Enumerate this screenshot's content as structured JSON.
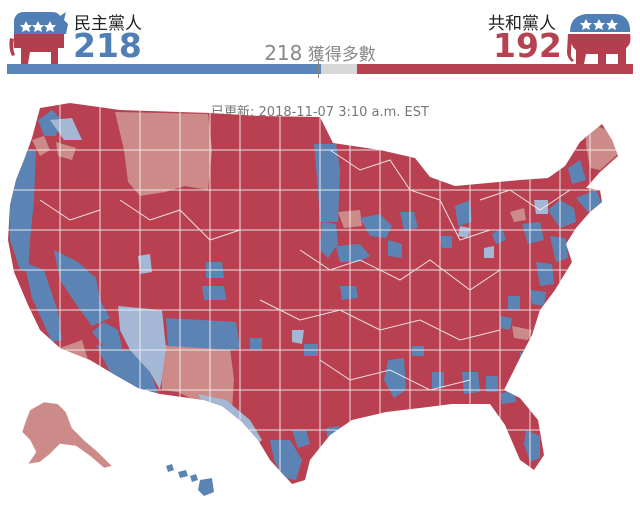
{
  "header": {
    "democrats": {
      "label": "民主黨人",
      "seats": "218",
      "icon": "donkey-icon",
      "color": "#4f7fb5"
    },
    "republicans": {
      "label": "共和黨人",
      "seats": "192",
      "icon": "elephant-icon",
      "color": "#b64150"
    },
    "majority": {
      "number": "218",
      "text": "獲得多數"
    },
    "progress": {
      "total_seats": 435,
      "dem_seats": 218,
      "rep_seats": 192
    }
  },
  "updated": "已更新: 2018-11-07 3:10 a.m. EST",
  "map": {
    "type": "district-results-map",
    "legend_colors": {
      "dem_won": "#5b84b5",
      "dem_leading": "#a4b7d4",
      "rep_won": "#b94050",
      "rep_leading": "#cc8b88",
      "boundary": "#f3f3f3"
    }
  }
}
